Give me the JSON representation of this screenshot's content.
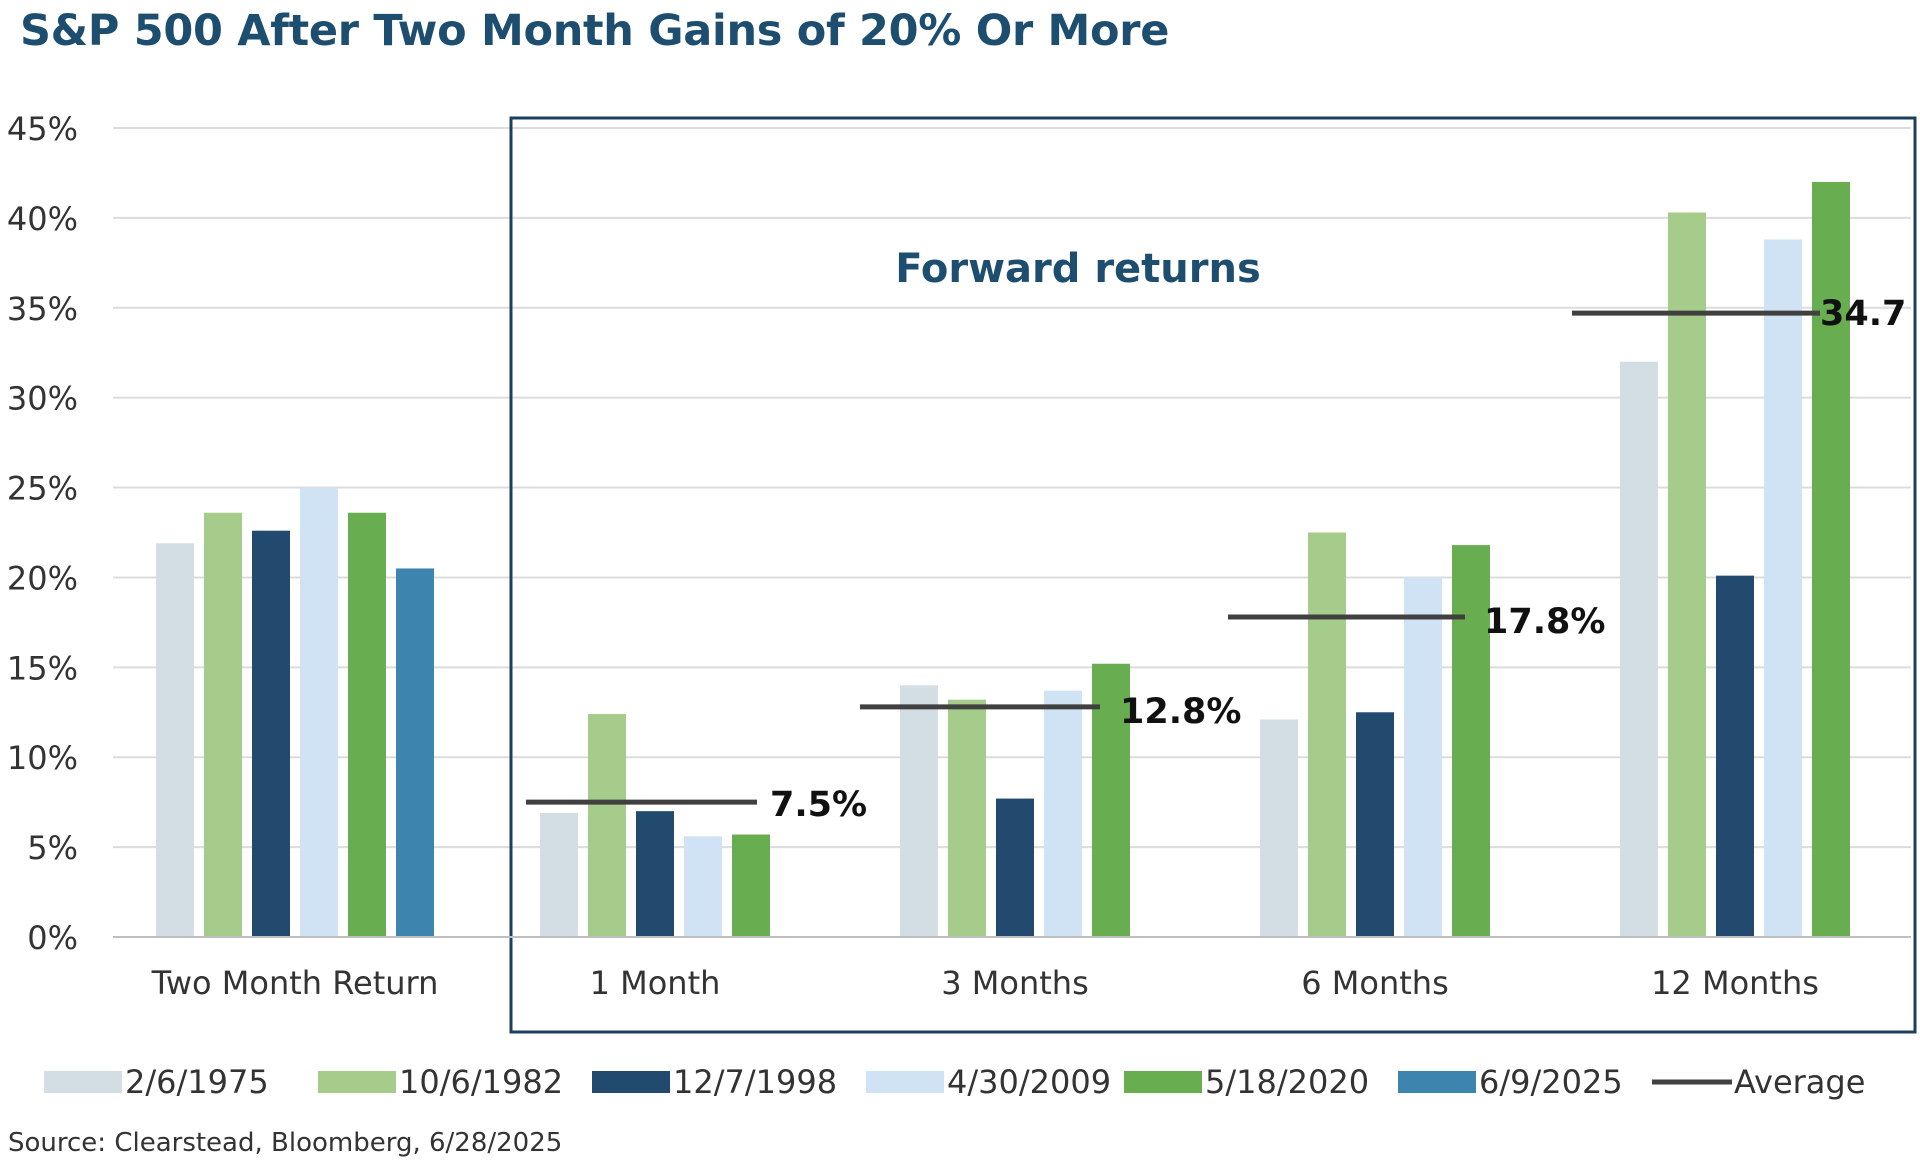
{
  "chart_data": {
    "type": "bar",
    "title": "S&P 500 After Two Month Gains of 20% Or More",
    "annotation": "Forward returns",
    "source": "Source: Clearstead, Bloomberg, 6/28/2025",
    "categories": [
      "Two Month Return",
      "1 Month",
      "3 Months",
      "6 Months",
      "12 Months"
    ],
    "ylim": [
      0,
      45
    ],
    "yticks": [
      0,
      5,
      10,
      15,
      20,
      25,
      30,
      35,
      40,
      45
    ],
    "ytick_labels": [
      "0%",
      "5%",
      "10%",
      "15%",
      "20%",
      "25%",
      "30%",
      "35%",
      "40%",
      "45%"
    ],
    "grid": true,
    "legend_position": "bottom",
    "series": [
      {
        "name": "2/6/1975",
        "color": "#d3dde4",
        "values": [
          21.9,
          6.9,
          14.0,
          12.1,
          32.0
        ]
      },
      {
        "name": "10/6/1982",
        "color": "#a5cc8a",
        "values": [
          23.6,
          12.4,
          13.2,
          22.5,
          40.3
        ]
      },
      {
        "name": "12/7/1998",
        "color": "#214a6e",
        "values": [
          22.6,
          7.0,
          7.7,
          12.5,
          20.1
        ]
      },
      {
        "name": "4/30/2009",
        "color": "#cfe3f5",
        "values": [
          25.0,
          5.6,
          13.7,
          20.0,
          38.8
        ]
      },
      {
        "name": "5/18/2020",
        "color": "#69ad51",
        "values": [
          23.6,
          5.7,
          15.2,
          21.8,
          42.0
        ]
      },
      {
        "name": "6/9/2025",
        "color": "#3d85ae",
        "values": [
          20.5,
          null,
          null,
          null,
          null
        ]
      }
    ],
    "average": {
      "name": "Average",
      "color": "#404040",
      "values": [
        null,
        7.5,
        12.8,
        17.8,
        34.7
      ],
      "labels": [
        "",
        "7.5%",
        "12.8%",
        "17.8%",
        "34.7"
      ]
    }
  }
}
